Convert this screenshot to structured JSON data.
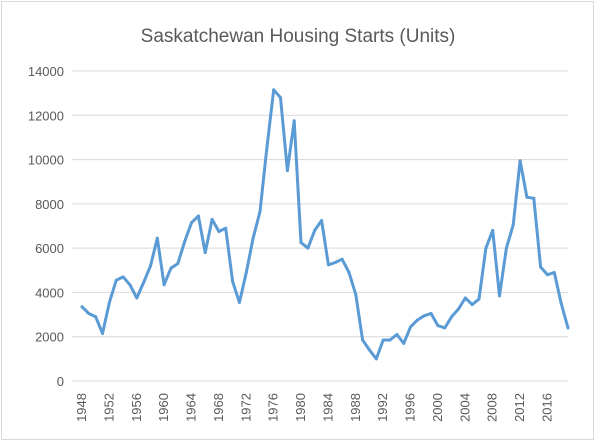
{
  "chart_data": {
    "type": "line",
    "title": "Saskatchewan Housing Starts (Units)",
    "xlabel": "",
    "ylabel": "",
    "ylim": [
      0,
      14000
    ],
    "y_ticks": [
      0,
      2000,
      4000,
      6000,
      8000,
      10000,
      12000,
      14000
    ],
    "x_tick_labels": [
      "1948",
      "1952",
      "1956",
      "1960",
      "1964",
      "1968",
      "1972",
      "1976",
      "1980",
      "1984",
      "1988",
      "1992",
      "1996",
      "2000",
      "2004",
      "2008",
      "2012",
      "2016"
    ],
    "grid": true,
    "legend": "none",
    "series_color": "#5b9bd5",
    "x": [
      1948,
      1949,
      1950,
      1951,
      1952,
      1953,
      1954,
      1955,
      1956,
      1957,
      1958,
      1959,
      1960,
      1961,
      1962,
      1963,
      1964,
      1965,
      1966,
      1967,
      1968,
      1969,
      1970,
      1971,
      1972,
      1973,
      1974,
      1975,
      1976,
      1977,
      1978,
      1979,
      1980,
      1981,
      1982,
      1983,
      1984,
      1985,
      1986,
      1987,
      1988,
      1989,
      1990,
      1991,
      1992,
      1993,
      1994,
      1995,
      1996,
      1997,
      1998,
      1999,
      2000,
      2001,
      2002,
      2003,
      2004,
      2005,
      2006,
      2007,
      2008,
      2009,
      2010,
      2011,
      2012,
      2013,
      2014,
      2015,
      2016,
      2017,
      2018,
      2019
    ],
    "series": [
      {
        "values": [
          3350,
          3050,
          2900,
          2150,
          3550,
          4550,
          4700,
          4350,
          3750,
          4450,
          5200,
          6450,
          4350,
          5100,
          5300,
          6300,
          7150,
          7450,
          5800,
          7300,
          6750,
          6900,
          4500,
          3550,
          4900,
          6450,
          7650,
          10500,
          13150,
          12800,
          9500,
          11750,
          6250,
          6000,
          6800,
          7250,
          5250,
          5350,
          5500,
          4900,
          3900,
          1850,
          1400,
          1000,
          1850,
          1850,
          2100,
          1700,
          2450,
          2750,
          2950,
          3050,
          2500,
          2400,
          2900,
          3250,
          3750,
          3450,
          3700,
          6000,
          6800,
          3850,
          6000,
          7050,
          9950,
          8300,
          8250,
          5150,
          4800,
          4900,
          3500,
          2400
        ]
      }
    ]
  }
}
